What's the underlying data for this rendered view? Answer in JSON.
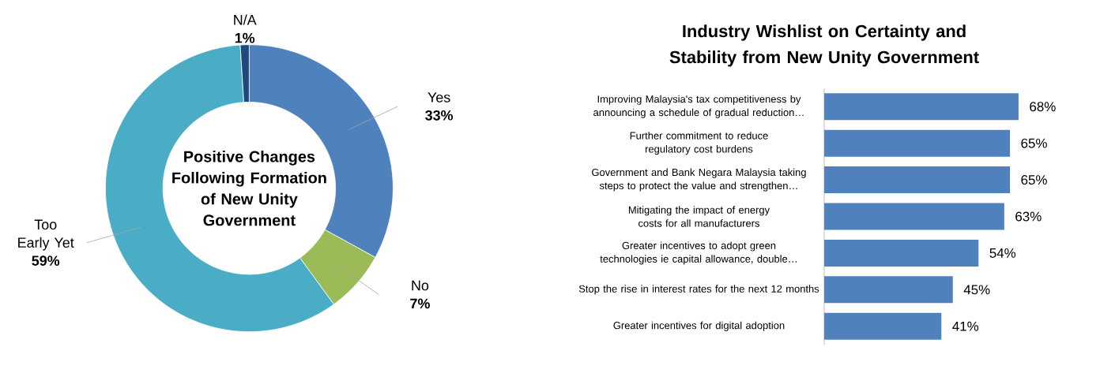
{
  "chart_data": [
    {
      "type": "donut",
      "title": "Positive Changes Following Formation of New Unity Government",
      "categories": [
        "Yes",
        "No",
        "Too Early Yet",
        "N/A"
      ],
      "values": [
        33,
        7,
        59,
        1
      ],
      "colors": [
        "#4f81bd",
        "#9bbb59",
        "#4bacc6",
        "#1f497d"
      ],
      "value_labels": [
        "33%",
        "7%",
        "59%",
        "1%"
      ]
    },
    {
      "type": "bar",
      "orientation": "horizontal",
      "title": "Industry Wishlist on Certainty and Stability from New Unity Government",
      "categories": [
        "Improving Malaysia's tax competitiveness by announcing a schedule of gradual reduction…",
        "Further commitment to reduce regulatory cost burdens",
        "Government and Bank Negara Malaysia taking steps to protect the value and strengthen…",
        "Mitigating the impact of energy costs for all manufacturers",
        "Greater incentives to adopt green technologies ie capital allowance, double…",
        "Stop the rise in interest rates for the next 12 months",
        "Greater incentives for digital adoption"
      ],
      "values": [
        68,
        65,
        65,
        63,
        54,
        45,
        41
      ],
      "color": "#4f81bd",
      "value_labels": [
        "68%",
        "65%",
        "65%",
        "63%",
        "54%",
        "45%",
        "41%"
      ]
    }
  ]
}
